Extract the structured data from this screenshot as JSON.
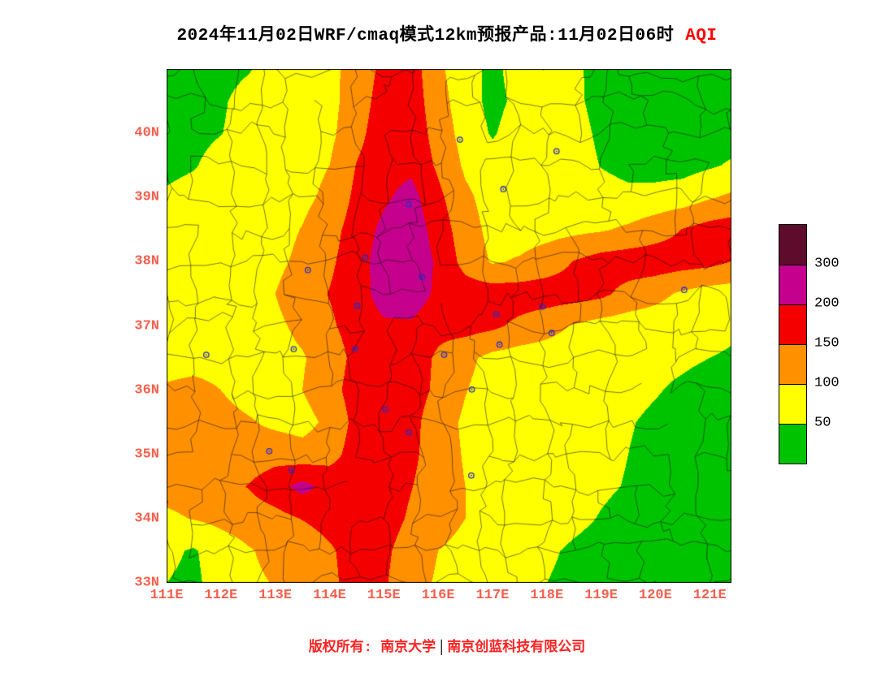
{
  "title": {
    "main": "2024年11月02日WRF/cmaq模式12km预报产品:11月02日06时",
    "highlight": "AQI"
  },
  "footer": {
    "left": "版权所有: 南京大学",
    "separator": "│",
    "right": "南京创蓝科技有限公司"
  },
  "axes": {
    "lat_ticks": [
      "40N",
      "39N",
      "38N",
      "37N",
      "36N",
      "35N",
      "34N",
      "33N"
    ],
    "lat_values": [
      40,
      39,
      38,
      37,
      36,
      35,
      34,
      33
    ],
    "lon_ticks": [
      "111E",
      "112E",
      "113E",
      "114E",
      "115E",
      "116E",
      "117E",
      "118E",
      "119E",
      "120E",
      "121E"
    ],
    "lon_values": [
      111,
      112,
      113,
      114,
      115,
      116,
      117,
      118,
      119,
      120,
      121
    ]
  },
  "colors": {
    "title_variable": "#ff0000",
    "tick_label": "#f4604e",
    "credit": "#ff2222",
    "frame": "#000000",
    "city_marker": "#2a2ac8"
  },
  "chart_data": {
    "type": "heatmap",
    "variable": "AQI",
    "title": "2024年11月02日WRF/cmaq模式12km预报产品:11月02日06时 AQI",
    "lon_range": [
      111,
      121.4
    ],
    "lat_range": [
      33,
      41
    ],
    "levels": [
      50,
      100,
      150,
      200,
      300
    ],
    "palette": [
      "#00c300",
      "#ffff00",
      "#ff9100",
      "#f40000",
      "#c4008d",
      "#5e0c2b"
    ],
    "legend_labels": [
      "300",
      "200",
      "150",
      "100",
      "50"
    ],
    "grid_lons": [
      111,
      111.5,
      112,
      112.5,
      113,
      113.5,
      114,
      114.5,
      115,
      115.5,
      116,
      116.5,
      117,
      117.5,
      118,
      118.5,
      119,
      119.5,
      120,
      120.5,
      121,
      121.5
    ],
    "grid_lats": [
      41,
      40.5,
      40,
      39.5,
      39,
      38.5,
      38,
      37.5,
      37,
      36.5,
      36,
      35.5,
      35,
      34.5,
      34,
      33.5,
      33
    ],
    "values": [
      [
        30,
        30,
        30,
        45,
        75,
        75,
        90,
        115,
        165,
        175,
        110,
        70,
        38,
        70,
        75,
        60,
        32,
        30,
        30,
        30,
        30,
        30
      ],
      [
        30,
        30,
        42,
        72,
        75,
        70,
        85,
        125,
        172,
        178,
        120,
        72,
        36,
        62,
        75,
        62,
        32,
        30,
        30,
        30,
        30,
        30
      ],
      [
        30,
        32,
        48,
        75,
        80,
        75,
        88,
        135,
        178,
        182,
        130,
        80,
        45,
        75,
        78,
        70,
        40,
        30,
        30,
        30,
        30,
        30
      ],
      [
        32,
        45,
        75,
        75,
        78,
        82,
        100,
        152,
        182,
        188,
        142,
        92,
        72,
        75,
        78,
        75,
        48,
        36,
        30,
        32,
        44,
        58
      ],
      [
        60,
        75,
        75,
        75,
        78,
        88,
        112,
        162,
        192,
        218,
        162,
        110,
        80,
        75,
        76,
        75,
        70,
        62,
        68,
        75,
        96,
        112
      ],
      [
        70,
        75,
        75,
        76,
        82,
        102,
        132,
        172,
        212,
        232,
        178,
        122,
        86,
        78,
        82,
        88,
        95,
        108,
        128,
        152,
        170,
        178
      ],
      [
        70,
        75,
        75,
        78,
        88,
        112,
        142,
        176,
        226,
        236,
        192,
        132,
        95,
        105,
        125,
        152,
        172,
        178,
        178,
        172,
        165,
        145
      ],
      [
        70,
        75,
        75,
        80,
        100,
        130,
        152,
        176,
        222,
        232,
        188,
        176,
        176,
        176,
        176,
        172,
        162,
        132,
        115,
        92,
        78,
        75
      ],
      [
        62,
        75,
        75,
        75,
        90,
        112,
        142,
        172,
        192,
        192,
        165,
        170,
        160,
        138,
        118,
        96,
        80,
        75,
        72,
        66,
        62,
        55
      ],
      [
        70,
        75,
        75,
        75,
        82,
        96,
        122,
        166,
        186,
        176,
        142,
        112,
        86,
        76,
        75,
        70,
        65,
        60,
        58,
        55,
        50,
        45
      ],
      [
        110,
        120,
        100,
        82,
        86,
        100,
        132,
        172,
        186,
        172,
        140,
        102,
        80,
        75,
        72,
        70,
        64,
        58,
        52,
        45,
        38,
        33
      ],
      [
        120,
        126,
        116,
        105,
        90,
        82,
        112,
        166,
        182,
        166,
        122,
        92,
        78,
        75,
        72,
        68,
        60,
        52,
        45,
        40,
        33,
        30
      ],
      [
        116,
        126,
        126,
        120,
        130,
        120,
        132,
        172,
        182,
        162,
        122,
        96,
        80,
        75,
        70,
        65,
        58,
        50,
        42,
        36,
        30,
        30
      ],
      [
        115,
        120,
        132,
        152,
        182,
        216,
        182,
        182,
        182,
        152,
        122,
        100,
        80,
        75,
        70,
        62,
        55,
        48,
        40,
        33,
        30,
        30
      ],
      [
        92,
        102,
        112,
        122,
        132,
        152,
        172,
        182,
        176,
        142,
        120,
        100,
        80,
        75,
        68,
        58,
        48,
        40,
        33,
        30,
        30,
        30
      ],
      [
        60,
        45,
        76,
        96,
        112,
        112,
        142,
        176,
        162,
        122,
        100,
        86,
        75,
        68,
        55,
        45,
        38,
        33,
        30,
        30,
        30,
        30
      ],
      [
        50,
        40,
        72,
        92,
        102,
        112,
        136,
        176,
        156,
        116,
        95,
        80,
        70,
        62,
        50,
        42,
        35,
        30,
        30,
        30,
        30,
        30
      ]
    ],
    "cities": [
      [
        115.46,
        38.89
      ],
      [
        114.66,
        38.06
      ],
      [
        113.6,
        37.87
      ],
      [
        115.7,
        37.76
      ],
      [
        114.51,
        37.31
      ],
      [
        117.07,
        37.18
      ],
      [
        117.92,
        37.3
      ],
      [
        120.53,
        37.56
      ],
      [
        117.13,
        36.71
      ],
      [
        118.09,
        36.89
      ],
      [
        116.11,
        36.55
      ],
      [
        111.73,
        36.55
      ],
      [
        113.34,
        36.64
      ],
      [
        114.47,
        36.64
      ],
      [
        115.03,
        35.7
      ],
      [
        116.62,
        36.01
      ],
      [
        115.46,
        35.34
      ],
      [
        112.89,
        35.05
      ],
      [
        113.3,
        34.75
      ],
      [
        116.61,
        34.67
      ],
      [
        116.4,
        39.9
      ],
      [
        117.2,
        39.13
      ],
      [
        118.18,
        39.72
      ]
    ]
  }
}
